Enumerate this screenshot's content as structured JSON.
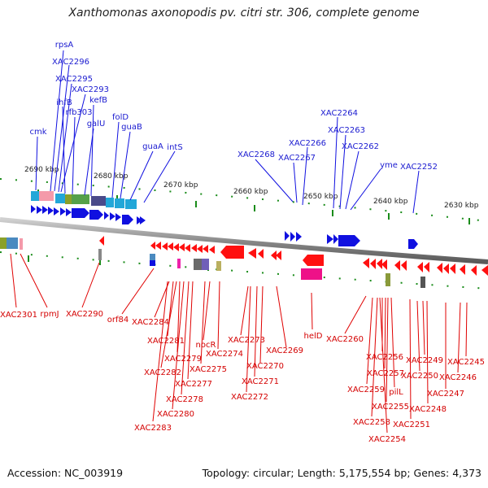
{
  "header": {
    "title": "Xanthomonas axonopodis pv. citri str. 306, complete genome"
  },
  "footer": {
    "accession": "Accession: NC_003919",
    "summary": "Topology: circular; Length: 5,175,554 bp; Genes: 4,373"
  },
  "ruler": {
    "ticks": [
      "2690 kbp",
      "2680 kbp",
      "2670 kbp",
      "2660 kbp",
      "2650 kbp",
      "2640 kbp",
      "2630 kbp"
    ]
  },
  "colors": {
    "forward": "#1010e0",
    "reverse": "#ff0000",
    "backbone": "#7a7a7a",
    "tick": "#008000"
  },
  "forward_labels": [
    "rpsA",
    "XAC2296",
    "XAC2295",
    "XAC2293",
    "ihfB",
    "rfb303",
    "kefB",
    "galU",
    "folD",
    "cmk",
    "guaB",
    "guaA",
    "intS",
    "XAC2264",
    "XAC2263",
    "XAC2266",
    "XAC2262",
    "XAC2268",
    "XAC2267",
    "yme",
    "XAC2252"
  ],
  "reverse_labels": [
    "XAC2301",
    "rpmJ",
    "XAC2290",
    "orf84",
    "XAC2284",
    "XAC2281",
    "nocR",
    "XAC2279",
    "XAC2274",
    "XAC2275",
    "XAC2282",
    "XAC2277",
    "XAC2278",
    "XAC2280",
    "XAC2283",
    "XAC2273",
    "XAC2270",
    "XAC2269",
    "XAC2271",
    "XAC2272",
    "helD",
    "XAC2260",
    "XAC2256",
    "XAC2257",
    "XAC2259",
    "pilL",
    "XAC2255",
    "XAC2258",
    "XAC2254",
    "XAC2249",
    "XAC2250",
    "XAC2245",
    "XAC2246",
    "XAC2247",
    "XAC2248",
    "XAC2251"
  ]
}
